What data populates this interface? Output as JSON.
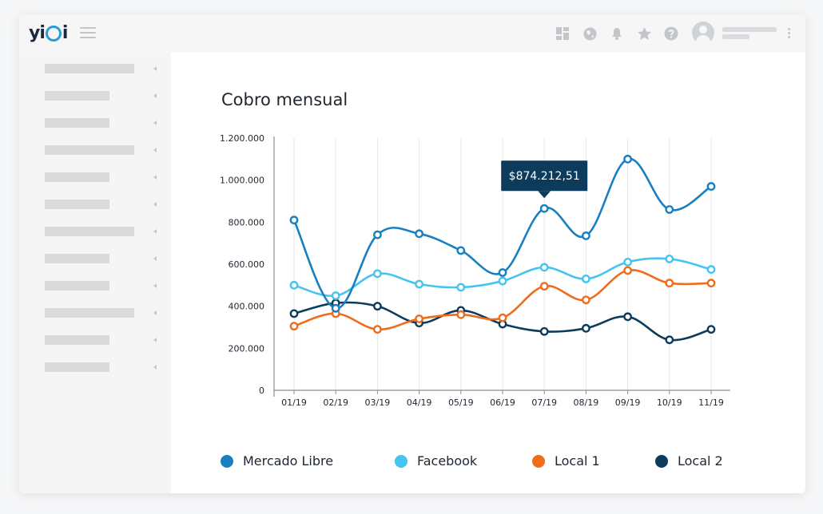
{
  "app": {
    "logo_text": "yi",
    "logo_tail": "i"
  },
  "topbar": {
    "icons": [
      "dashboard-icon",
      "globe-icon",
      "bell-icon",
      "star-icon",
      "help-icon"
    ],
    "icon_color": "#c2c6cb"
  },
  "colors": {
    "mercado_libre": "#1a7fc1",
    "facebook": "#45c4ef",
    "local1": "#ef6c1a",
    "local2": "#0d3b5c",
    "tooltip_bg": "#0d3b5c"
  },
  "chart_data": {
    "type": "line",
    "title": "Cobro mensual",
    "categories": [
      "01/19",
      "02/19",
      "03/19",
      "04/19",
      "05/19",
      "06/19",
      "07/19",
      "08/19",
      "09/19",
      "10/19",
      "11/19"
    ],
    "yticks": [
      "0",
      "200.000",
      "400.000",
      "600.000",
      "800.000",
      "1.000.000",
      "1.200.000"
    ],
    "ylim": [
      0,
      1200000
    ],
    "grid": "vertical",
    "legend_position": "bottom",
    "series": [
      {
        "name": "Mercado Libre",
        "values": [
          810000,
          390000,
          740000,
          745000,
          665000,
          560000,
          865000,
          735000,
          1100000,
          860000,
          970000
        ]
      },
      {
        "name": "Facebook",
        "values": [
          500000,
          450000,
          555000,
          505000,
          490000,
          520000,
          585000,
          530000,
          610000,
          625000,
          575000
        ]
      },
      {
        "name": "Local 1",
        "values": [
          305000,
          365000,
          290000,
          340000,
          360000,
          345000,
          495000,
          430000,
          570000,
          510000,
          510000
        ]
      },
      {
        "name": "Local 2",
        "values": [
          365000,
          415000,
          400000,
          320000,
          380000,
          315000,
          280000,
          295000,
          350000,
          240000,
          290000
        ]
      }
    ],
    "tooltip": {
      "series": "Mercado Libre",
      "category": "07/19",
      "text": "$874.212,51"
    }
  }
}
